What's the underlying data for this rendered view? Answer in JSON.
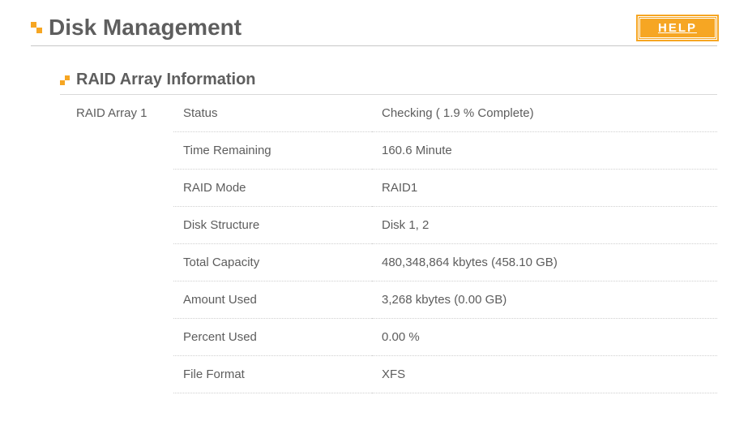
{
  "header": {
    "title": "Disk Management",
    "help_label": "HELP"
  },
  "section": {
    "title": "RAID Array Information",
    "array_label": "RAID Array 1",
    "rows": [
      {
        "label": "Status",
        "value": "Checking (  1.9 % Complete)"
      },
      {
        "label": "Time Remaining",
        "value": "160.6 Minute"
      },
      {
        "label": "RAID Mode",
        "value": "RAID1"
      },
      {
        "label": "Disk Structure",
        "value": "Disk 1, 2"
      },
      {
        "label": "Total Capacity",
        "value": "480,348,864 kbytes (458.10 GB)"
      },
      {
        "label": "Amount Used",
        "value": "3,268 kbytes (0.00 GB)"
      },
      {
        "label": "Percent Used",
        "value": "0.00 %"
      },
      {
        "label": "File Format",
        "value": "XFS"
      }
    ]
  },
  "colors": {
    "accent": "#f6a623",
    "text": "#5d5d5d",
    "divider": "#d0d0d0"
  }
}
